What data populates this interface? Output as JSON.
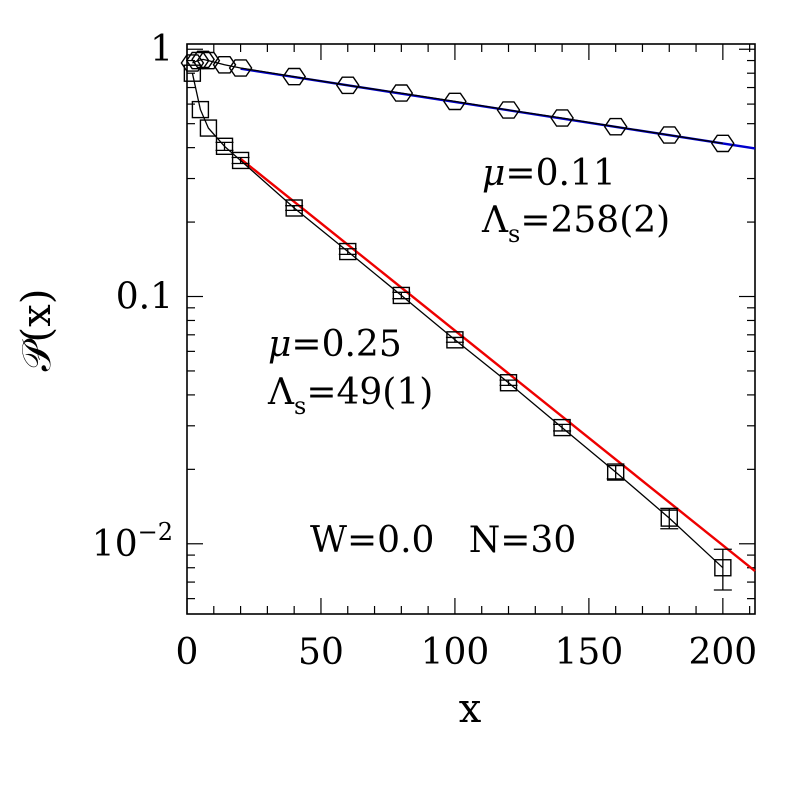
{
  "chart_data": {
    "type": "scatter",
    "title": "",
    "xlabel": "x",
    "ylabel": "𝒫(x)",
    "xlim": [
      0,
      212
    ],
    "ylim": [
      0.0052,
      1.05
    ],
    "yscale": "log",
    "grid": false,
    "x_ticks": [
      {
        "value": 0,
        "label": "0"
      },
      {
        "value": 50,
        "label": "50"
      },
      {
        "value": 100,
        "label": "100"
      },
      {
        "value": 150,
        "label": "150"
      },
      {
        "value": 200,
        "label": "200"
      }
    ],
    "y_ticks": [
      {
        "value": 1,
        "label": "1",
        "sup": ""
      },
      {
        "value": 0.1,
        "label": "0.1",
        "sup": ""
      },
      {
        "value": 0.01,
        "label": "10",
        "sup": "−2"
      }
    ],
    "series": [
      {
        "marker": "hexagon",
        "fit_color": "#0000cc",
        "fit": {
          "slope_log10_per_unit": -0.00168,
          "intercept_log10": -0.0452,
          "x_from": 20,
          "x_to": 212
        },
        "x": [
          2,
          4,
          6,
          8,
          14,
          20,
          40,
          60,
          80,
          100,
          120,
          140,
          160,
          180,
          200
        ],
        "y": [
          0.88,
          0.9,
          0.91,
          0.9,
          0.865,
          0.84,
          0.775,
          0.715,
          0.665,
          0.615,
          0.568,
          0.527,
          0.486,
          0.45,
          0.416
        ],
        "err": [
          0,
          0,
          0,
          0,
          0,
          0,
          0,
          0,
          0,
          0,
          0,
          0,
          0,
          0,
          0
        ]
      },
      {
        "marker": "square",
        "fit_color": "#ee0000",
        "fit": {
          "slope_log10_per_unit": -0.008684,
          "intercept_log10": -0.2694,
          "x_from": 20,
          "x_to": 212
        },
        "x": [
          2,
          5,
          8,
          14,
          20,
          40,
          60,
          80,
          100,
          120,
          140,
          160,
          180,
          200
        ],
        "y": [
          0.8,
          0.57,
          0.48,
          0.405,
          0.355,
          0.228,
          0.152,
          0.101,
          0.0668,
          0.0448,
          0.0295,
          0.0195,
          0.0127,
          0.008
        ],
        "err": [
          0,
          0,
          0,
          0.015,
          0.01,
          0.005,
          0.004,
          0.003,
          0.0015,
          0.0011,
          0.0009,
          0.0012,
          0.0012,
          0.0015
        ]
      }
    ],
    "annotations": {
      "a1": {
        "mu_label": "μ",
        "mu_value": "=0.11",
        "lam_label": "Λ",
        "lam_sub": "s",
        "lam_value": "=258(2)"
      },
      "a2": {
        "mu_label": "μ",
        "mu_value": "=0.25",
        "lam_label": "Λ",
        "lam_sub": "s",
        "lam_value": "=49(1)"
      },
      "params": "W=0.0   N=30"
    }
  }
}
